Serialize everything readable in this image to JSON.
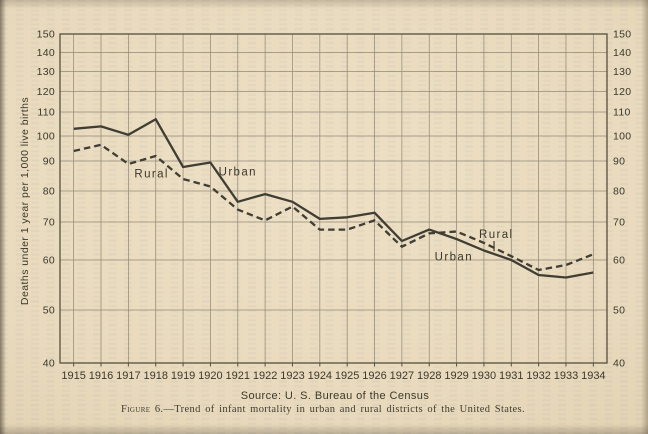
{
  "figure": {
    "source_line": "Source: U. S. Bureau of the Census",
    "caption_label": "Figure 6.",
    "caption_text": "—Trend of infant mortality in urban and rural districts of the United States."
  },
  "chart_data": {
    "type": "line",
    "title": "",
    "xlabel": "",
    "ylabel": "Deaths under 1 year per 1,000 live births",
    "ylim": [
      40,
      150
    ],
    "yticks": [
      150,
      140,
      130,
      120,
      110,
      100,
      90,
      80,
      70,
      60,
      50,
      40
    ],
    "ytick_labels_both_sides": true,
    "grid": "full-box grid, vertical line at every year, horizontal line every 10 units",
    "legend_position": "labels drawn inline next to the curves",
    "x": [
      1915,
      1916,
      1917,
      1918,
      1919,
      1920,
      1921,
      1922,
      1923,
      1924,
      1925,
      1926,
      1927,
      1928,
      1929,
      1930,
      1931,
      1932,
      1933,
      1934
    ],
    "series": [
      {
        "name": "Urban",
        "style": "solid",
        "values": [
          103,
          104,
          100.5,
          107,
          88,
          89.5,
          76.5,
          79,
          76.5,
          71,
          71.5,
          73,
          65,
          68,
          65.5,
          62.5,
          60,
          57,
          56.5,
          57.5
        ]
      },
      {
        "name": "Rural",
        "style": "dashed",
        "values": [
          94,
          96.5,
          89,
          92,
          84,
          81.5,
          74,
          70.5,
          75,
          68,
          68,
          70.5,
          63.5,
          67,
          67.5,
          64.5,
          61,
          58,
          59,
          61.5
        ]
      }
    ],
    "annotations": [
      {
        "text": "Rural",
        "series": "Rural",
        "year": 1917.85,
        "value": 85.8,
        "side": "left"
      },
      {
        "text": "Urban",
        "series": "Urban",
        "year": 1921.0,
        "value": 86.5,
        "side": "left"
      },
      {
        "text": "Urban",
        "series": "Urban",
        "year": 1928.9,
        "value": 60.9,
        "side": "right"
      },
      {
        "text": "Rural",
        "series": "Rural",
        "year": 1930.45,
        "value": 66.8,
        "side": "right",
        "leader": {
          "year": 1930.37,
          "from": 65.0,
          "to": 62.3
        }
      }
    ]
  },
  "colors": {
    "paper": "#e9dabd",
    "ink": "#3b382c",
    "line": "#403d33",
    "grid": "#8b8270",
    "frame": "#55503e"
  }
}
